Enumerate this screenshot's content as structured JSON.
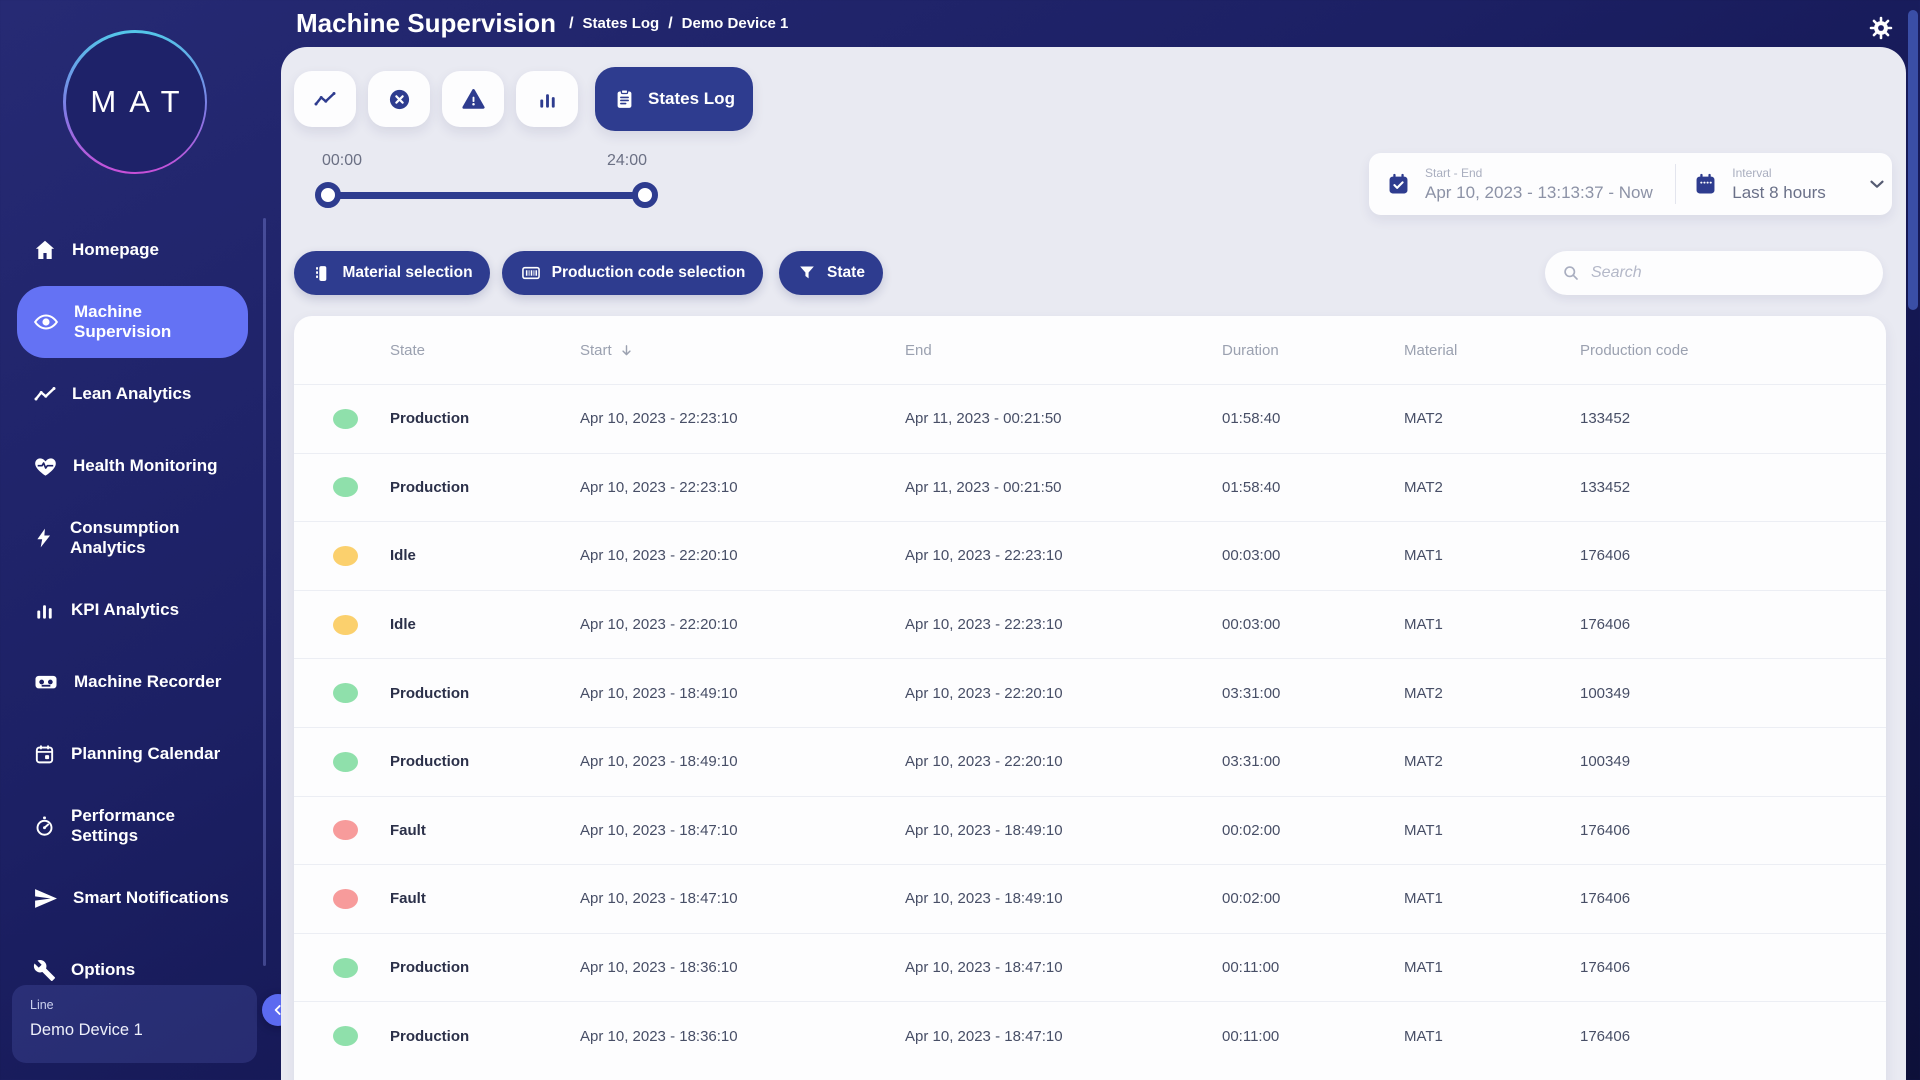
{
  "logo": {
    "text": "MAT"
  },
  "header": {
    "title": "Machine Supervision",
    "breadcrumbs": [
      "States Log",
      "Demo Device 1"
    ]
  },
  "sidebar": {
    "items": [
      {
        "icon": "home-icon",
        "label": "Homepage",
        "active": false
      },
      {
        "icon": "eye-icon",
        "label": "Machine Supervision",
        "active": true
      },
      {
        "icon": "trend-icon",
        "label": "Lean Analytics",
        "active": false
      },
      {
        "icon": "heart-icon",
        "label": "Health Monitoring",
        "active": false
      },
      {
        "icon": "bolt-icon",
        "label": "Consumption Analytics",
        "active": false
      },
      {
        "icon": "bar-chart-icon",
        "label": "KPI Analytics",
        "active": false
      },
      {
        "icon": "recorder-icon",
        "label": "Machine Recorder",
        "active": false
      },
      {
        "icon": "calendar-icon",
        "label": "Planning Calendar",
        "active": false
      },
      {
        "icon": "gauge-icon",
        "label": "Performance Settings",
        "active": false
      },
      {
        "icon": "send-icon",
        "label": "Smart Notifications",
        "active": false
      },
      {
        "icon": "wrench-icon",
        "label": "Options",
        "active": false
      }
    ],
    "device": {
      "label": "Line",
      "name": "Demo Device 1"
    }
  },
  "tabs": {
    "items": [
      {
        "icon": "trend-icon",
        "name": "tab-trends",
        "active": false
      },
      {
        "icon": "x-circle-icon",
        "name": "tab-stops",
        "active": false
      },
      {
        "icon": "warning-icon",
        "name": "tab-alarms",
        "active": false
      },
      {
        "icon": "bar-chart-icon",
        "name": "tab-analytics",
        "active": false
      },
      {
        "icon": "clipboard-icon",
        "name": "tab-states-log",
        "active": true,
        "label": "States Log"
      }
    ]
  },
  "time_slider": {
    "start_label": "00:00",
    "end_label": "24:00"
  },
  "range_picker": {
    "start_end_label": "Start - End",
    "start_end_value": "Apr 10, 2023 - 13:13:37 - Now",
    "interval_label": "Interval",
    "interval_value": "Last 8 hours"
  },
  "filters": {
    "material_label": "Material selection",
    "production_code_label": "Production code selection",
    "state_label": "State"
  },
  "search": {
    "placeholder": "Search"
  },
  "table": {
    "columns": [
      "State",
      "Start",
      "End",
      "Duration",
      "Material",
      "Production code"
    ],
    "sort_column": "Start",
    "rows": [
      {
        "status": "green",
        "state": "Production",
        "start": "Apr 10, 2023 - 22:23:10",
        "end": "Apr 11, 2023 - 00:21:50",
        "duration": "01:58:40",
        "material": "MAT2",
        "production_code": "133452"
      },
      {
        "status": "green",
        "state": "Production",
        "start": "Apr 10, 2023 - 22:23:10",
        "end": "Apr 11, 2023 - 00:21:50",
        "duration": "01:58:40",
        "material": "MAT2",
        "production_code": "133452"
      },
      {
        "status": "yellow",
        "state": "Idle",
        "start": "Apr 10, 2023 - 22:20:10",
        "end": "Apr 10, 2023 - 22:23:10",
        "duration": "00:03:00",
        "material": "MAT1",
        "production_code": "176406"
      },
      {
        "status": "yellow",
        "state": "Idle",
        "start": "Apr 10, 2023 - 22:20:10",
        "end": "Apr 10, 2023 - 22:23:10",
        "duration": "00:03:00",
        "material": "MAT1",
        "production_code": "176406"
      },
      {
        "status": "green",
        "state": "Production",
        "start": "Apr 10, 2023 - 18:49:10",
        "end": "Apr 10, 2023 - 22:20:10",
        "duration": "03:31:00",
        "material": "MAT2",
        "production_code": "100349"
      },
      {
        "status": "green",
        "state": "Production",
        "start": "Apr 10, 2023 - 18:49:10",
        "end": "Apr 10, 2023 - 22:20:10",
        "duration": "03:31:00",
        "material": "MAT2",
        "production_code": "100349"
      },
      {
        "status": "red",
        "state": "Fault",
        "start": "Apr 10, 2023 - 18:47:10",
        "end": "Apr 10, 2023 - 18:49:10",
        "duration": "00:02:00",
        "material": "MAT1",
        "production_code": "176406"
      },
      {
        "status": "red",
        "state": "Fault",
        "start": "Apr 10, 2023 - 18:47:10",
        "end": "Apr 10, 2023 - 18:49:10",
        "duration": "00:02:00",
        "material": "MAT1",
        "production_code": "176406"
      },
      {
        "status": "green",
        "state": "Production",
        "start": "Apr 10, 2023 - 18:36:10",
        "end": "Apr 10, 2023 - 18:47:10",
        "duration": "00:11:00",
        "material": "MAT1",
        "production_code": "176406"
      },
      {
        "status": "green",
        "state": "Production",
        "start": "Apr 10, 2023 - 18:36:10",
        "end": "Apr 10, 2023 - 18:47:10",
        "duration": "00:11:00",
        "material": "MAT1",
        "production_code": "176406"
      }
    ]
  },
  "colors": {
    "accent_dark_blue": "#2e3c8f",
    "sidebar_active": "#6472f4",
    "status": {
      "green": "#8fe0ab",
      "yellow": "#fbd06d",
      "red": "#f79b9b"
    }
  }
}
